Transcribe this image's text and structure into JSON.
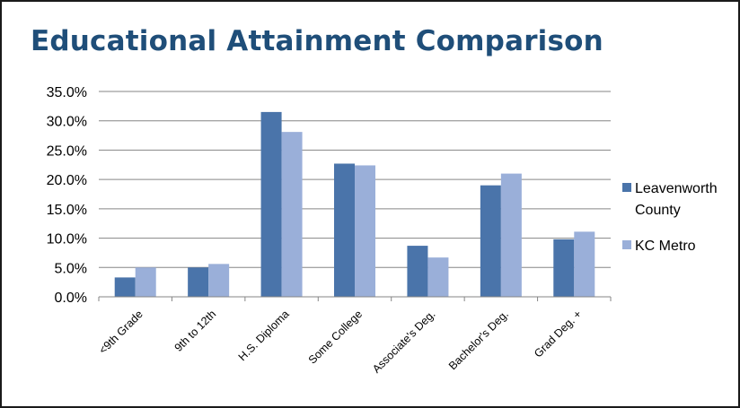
{
  "chart_data": {
    "type": "bar",
    "title": "Educational Attainment Comparison",
    "categories": [
      "<9th Grade",
      "9th to 12th",
      "H.S. Diploma",
      "Some College",
      "Associate's Deg.",
      "Bachelor's Deg.",
      "Grad Deg. +"
    ],
    "series": [
      {
        "name": "Leavenworth County",
        "legend_lines": [
          "Leavenworth",
          "County"
        ],
        "color": "#4a74aa",
        "values": [
          3.3,
          5.0,
          31.5,
          22.7,
          8.7,
          19.0,
          9.8
        ]
      },
      {
        "name": "KC Metro",
        "legend_lines": [
          "KC Metro"
        ],
        "color": "#9aafd9",
        "values": [
          5.0,
          5.6,
          28.1,
          22.4,
          6.7,
          21.0,
          11.1
        ]
      }
    ],
    "ylim": [
      0,
      35
    ],
    "yticks": [
      "0.0%",
      "5.0%",
      "10.0%",
      "15.0%",
      "20.0%",
      "25.0%",
      "30.0%",
      "35.0%"
    ],
    "ytick_values": [
      0,
      5,
      10,
      15,
      20,
      25,
      30,
      35
    ],
    "grid": true,
    "legend": "right",
    "xlabel": "",
    "ylabel": ""
  }
}
